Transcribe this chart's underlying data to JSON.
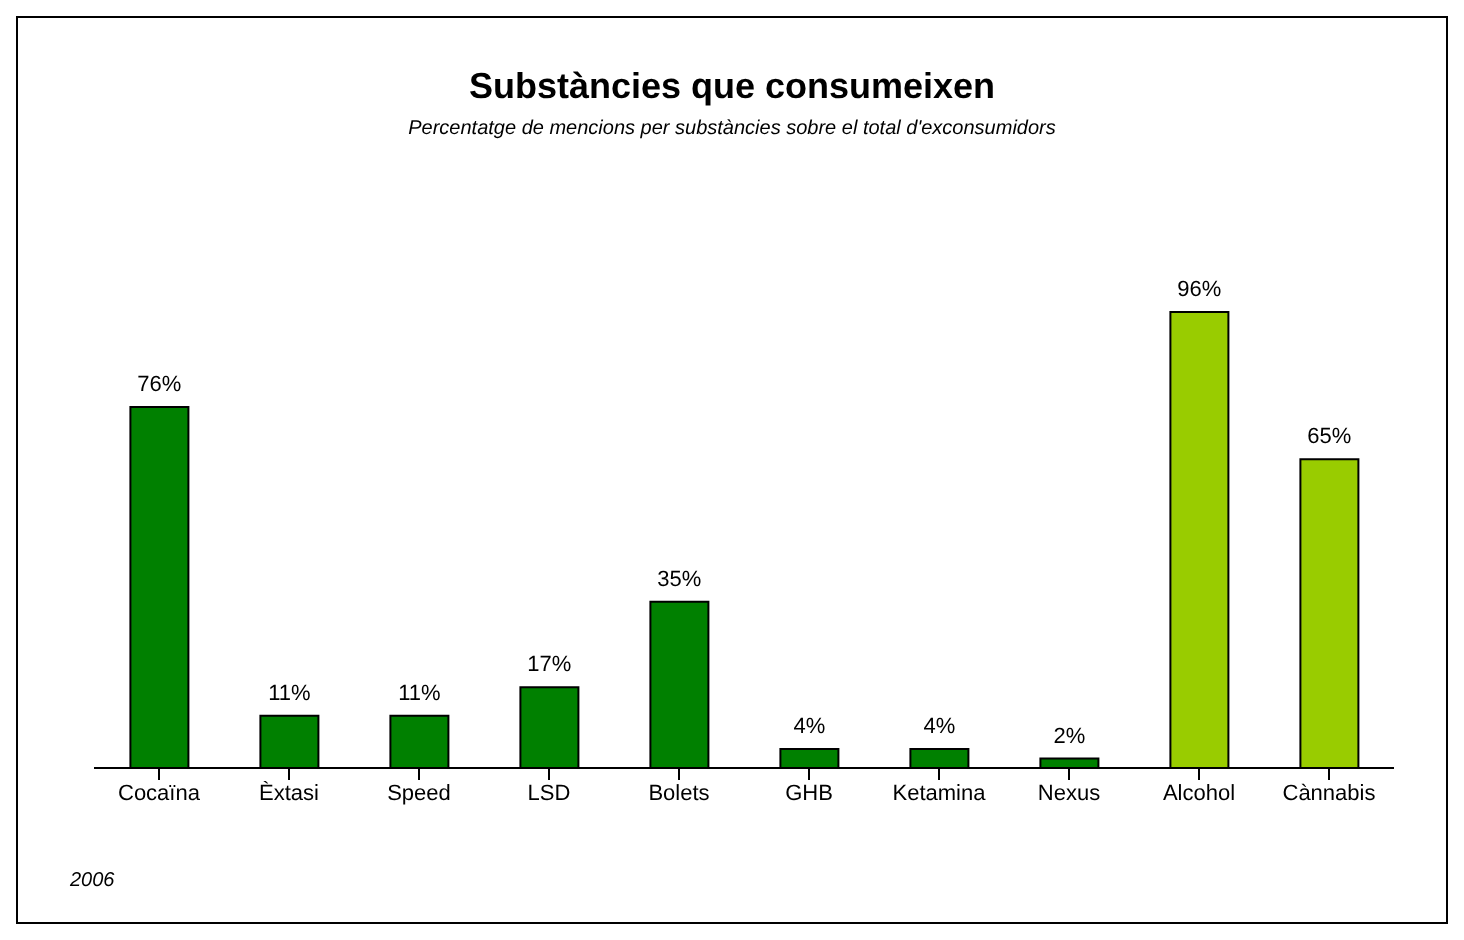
{
  "chart_data": {
    "type": "bar",
    "title": "Substàncies que consumeixen",
    "subtitle": "Percentatge de mencions per substàncies sobre el total d'exconsumidors",
    "categories": [
      "Cocaïna",
      "Èxtasi",
      "Speed",
      "LSD",
      "Bolets",
      "GHB",
      "Ketamina",
      "Nexus",
      "Alcohol",
      "Cànnabis"
    ],
    "values": [
      76,
      11,
      11,
      17,
      35,
      4,
      4,
      2,
      96,
      65
    ],
    "value_labels": [
      "76%",
      "11%",
      "11%",
      "17%",
      "35%",
      "4%",
      "4%",
      "2%",
      "96%",
      "65%"
    ],
    "colors": [
      "#008000",
      "#008000",
      "#008000",
      "#008000",
      "#008000",
      "#008000",
      "#008000",
      "#008000",
      "#99cc00",
      "#99cc00"
    ],
    "grid": false,
    "legend": false,
    "annotations": [
      "2006"
    ]
  }
}
